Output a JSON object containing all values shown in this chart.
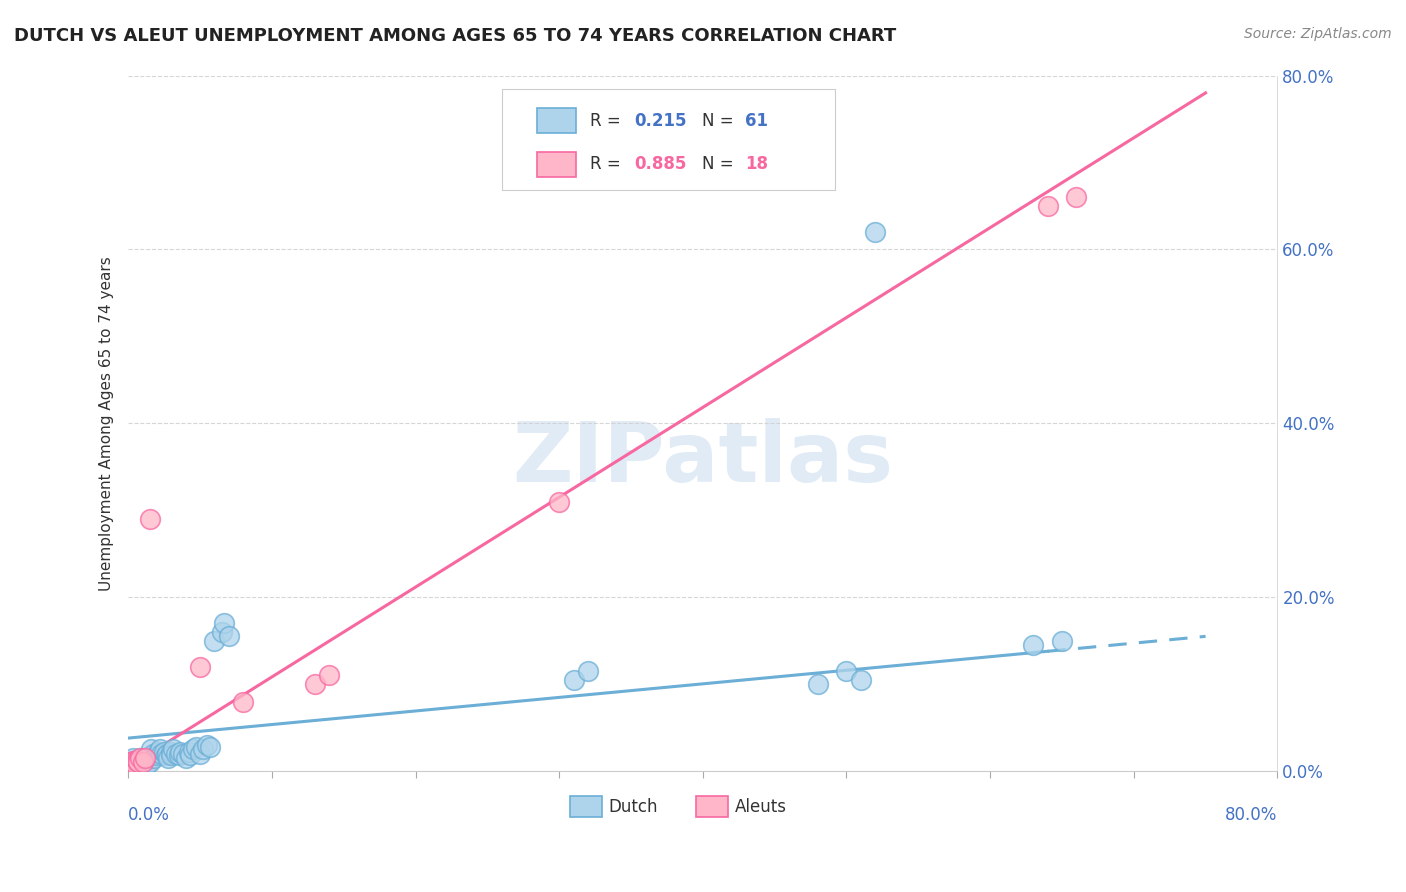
{
  "title": "DUTCH VS ALEUT UNEMPLOYMENT AMONG AGES 65 TO 74 YEARS CORRELATION CHART",
  "source": "Source: ZipAtlas.com",
  "ylabel": "Unemployment Among Ages 65 to 74 years",
  "legend_dutch_r": "0.215",
  "legend_dutch_n": "61",
  "legend_aleuts_r": "0.885",
  "legend_aleuts_n": "18",
  "legend_dutch_label": "Dutch",
  "legend_aleuts_label": "Aleuts",
  "watermark": "ZIPatlas",
  "dutch_color": "#6baed6",
  "dutch_color_light": "#aed4eb",
  "aleuts_color": "#ffb6c8",
  "aleuts_color_dark": "#f768a1",
  "xlim": [
    0.0,
    0.8
  ],
  "ylim": [
    0.0,
    0.8
  ],
  "yticks": [
    0.0,
    0.2,
    0.4,
    0.6,
    0.8
  ],
  "xticks": [
    0.0,
    0.1,
    0.2,
    0.3,
    0.4,
    0.5,
    0.6,
    0.7,
    0.8
  ],
  "dutch_scatter_x": [
    0.001,
    0.002,
    0.003,
    0.003,
    0.004,
    0.004,
    0.005,
    0.005,
    0.006,
    0.006,
    0.007,
    0.007,
    0.008,
    0.008,
    0.009,
    0.01,
    0.01,
    0.011,
    0.012,
    0.013,
    0.015,
    0.015,
    0.016,
    0.017,
    0.018,
    0.02,
    0.021,
    0.022,
    0.023,
    0.025,
    0.026,
    0.027,
    0.028,
    0.03,
    0.03,
    0.031,
    0.033,
    0.035,
    0.036,
    0.038,
    0.04,
    0.042,
    0.043,
    0.045,
    0.047,
    0.05,
    0.052,
    0.055,
    0.057,
    0.06,
    0.065,
    0.067,
    0.07,
    0.31,
    0.32,
    0.48,
    0.5,
    0.51,
    0.52,
    0.63,
    0.65
  ],
  "dutch_scatter_y": [
    0.01,
    0.005,
    0.008,
    0.015,
    0.012,
    0.006,
    0.01,
    0.007,
    0.012,
    0.005,
    0.01,
    0.008,
    0.015,
    0.005,
    0.01,
    0.012,
    0.008,
    0.015,
    0.01,
    0.008,
    0.015,
    0.01,
    0.025,
    0.02,
    0.015,
    0.018,
    0.022,
    0.025,
    0.02,
    0.022,
    0.018,
    0.02,
    0.015,
    0.022,
    0.018,
    0.025,
    0.02,
    0.018,
    0.022,
    0.02,
    0.015,
    0.022,
    0.018,
    0.025,
    0.028,
    0.02,
    0.025,
    0.03,
    0.028,
    0.15,
    0.16,
    0.17,
    0.155,
    0.105,
    0.115,
    0.1,
    0.115,
    0.105,
    0.62,
    0.145,
    0.15
  ],
  "aleuts_scatter_x": [
    0.001,
    0.002,
    0.003,
    0.004,
    0.005,
    0.006,
    0.007,
    0.008,
    0.01,
    0.012,
    0.015,
    0.05,
    0.08,
    0.13,
    0.14,
    0.3,
    0.64,
    0.66
  ],
  "aleuts_scatter_y": [
    0.01,
    0.008,
    0.012,
    0.01,
    0.008,
    0.012,
    0.01,
    0.015,
    0.01,
    0.015,
    0.29,
    0.12,
    0.08,
    0.1,
    0.11,
    0.31,
    0.65,
    0.66
  ],
  "dutch_trend_x0": 0.0,
  "dutch_trend_x1": 0.75,
  "dutch_trend_y0": 0.038,
  "dutch_trend_y1": 0.155,
  "dutch_trend_solid_end": 0.64,
  "aleuts_trend_x0": 0.0,
  "aleuts_trend_x1": 0.75,
  "aleuts_trend_y0": 0.005,
  "aleuts_trend_y1": 0.78
}
